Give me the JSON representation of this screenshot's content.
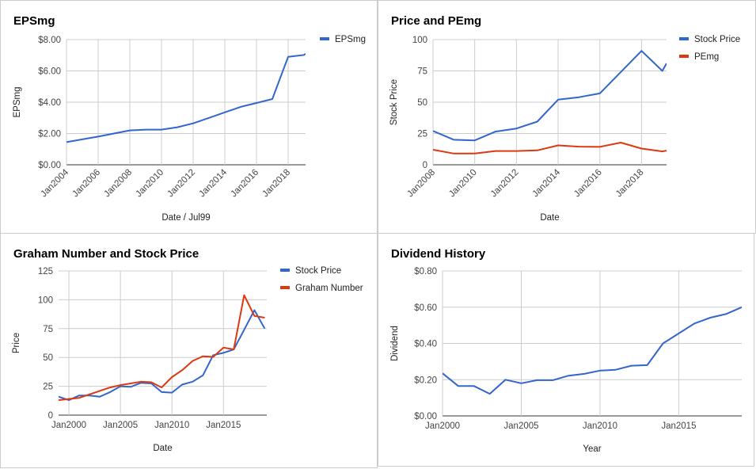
{
  "chart_data": [
    {
      "type": "line",
      "title": "EPSmg",
      "xlabel": "Date / Jul99",
      "ylabel": "EPSmg",
      "x_ticks": [
        "Jan2004",
        "Jan2006",
        "Jan2008",
        "Jan2010",
        "Jan2012",
        "Jan2014",
        "Jan2016",
        "Jan2018"
      ],
      "y_ticks": [
        "$0.00",
        "$2.00",
        "$4.00",
        "$6.00",
        "$8.00"
      ],
      "xlim": [
        2004.0,
        2019.1
      ],
      "ylim": [
        0,
        8
      ],
      "grid": true,
      "legend_position": "right",
      "series": [
        {
          "name": "EPSmg",
          "color": "#3366cc",
          "x": [
            2004.0,
            2006.0,
            2008.0,
            2009.0,
            2010.0,
            2011.0,
            2012.0,
            2013.0,
            2014.0,
            2015.0,
            2016.0,
            2017.0,
            2018.0,
            2019.0,
            2019.1
          ],
          "y": [
            1.45,
            1.8,
            2.2,
            2.25,
            2.25,
            2.4,
            2.65,
            3.0,
            3.35,
            3.7,
            3.95,
            4.2,
            6.9,
            7.02,
            7.1
          ]
        }
      ]
    },
    {
      "type": "line",
      "title": "Price and PEmg",
      "xlabel": "Date",
      "ylabel": "Stock Price",
      "x_ticks": [
        "Jan2008",
        "Jan2010",
        "Jan2012",
        "Jan2014",
        "Jan2016",
        "Jan2018"
      ],
      "y_ticks": [
        "0",
        "25",
        "50",
        "75",
        "100"
      ],
      "xlim": [
        2008.0,
        2019.2
      ],
      "ylim": [
        0,
        100
      ],
      "grid": true,
      "legend_position": "right",
      "series": [
        {
          "name": "Stock Price",
          "color": "#3366cc",
          "x": [
            2008.0,
            2009.0,
            2010.0,
            2011.0,
            2012.0,
            2013.0,
            2014.0,
            2015.0,
            2016.0,
            2017.0,
            2018.0,
            2019.0,
            2019.2
          ],
          "y": [
            27,
            20,
            19.5,
            26.5,
            29,
            34.5,
            52,
            54,
            57,
            74,
            91,
            75,
            81
          ]
        },
        {
          "name": "PEmg",
          "color": "#dc3912",
          "x": [
            2008.0,
            2009.0,
            2010.0,
            2011.0,
            2012.0,
            2013.0,
            2014.0,
            2015.0,
            2016.0,
            2017.0,
            2018.0,
            2019.0,
            2019.2
          ],
          "y": [
            12,
            9,
            9,
            11,
            11,
            11.5,
            15.5,
            14.5,
            14.3,
            17.7,
            13,
            10.7,
            11.3
          ]
        }
      ]
    },
    {
      "type": "line",
      "title": "Graham Number and Stock Price",
      "xlabel": "Date",
      "ylabel": "Price",
      "x_ticks": [
        "Jan2000",
        "Jan2005",
        "Jan2010",
        "Jan2015"
      ],
      "y_ticks": [
        "0",
        "25",
        "50",
        "75",
        "100",
        "125"
      ],
      "xlim": [
        1999.0,
        2019.2
      ],
      "ylim": [
        0,
        125
      ],
      "grid": true,
      "legend_position": "right",
      "series": [
        {
          "name": "Stock Price",
          "color": "#3366cc",
          "x": [
            1999.0,
            2000.0,
            2001.0,
            2002.0,
            2003.0,
            2004.0,
            2005.0,
            2006.0,
            2007.0,
            2008.0,
            2009.0,
            2010.0,
            2011.0,
            2012.0,
            2013.0,
            2014.0,
            2015.0,
            2016.0,
            2017.0,
            2018.0,
            2019.0
          ],
          "y": [
            16,
            13,
            17,
            17,
            16,
            20,
            25,
            24.5,
            28,
            27.5,
            20,
            19.5,
            26.5,
            29,
            34.5,
            52,
            54,
            57,
            74,
            91,
            75
          ]
        },
        {
          "name": "Graham Number",
          "color": "#dc3912",
          "x": [
            1999.0,
            2000.0,
            2001.0,
            2002.0,
            2003.0,
            2004.0,
            2005.0,
            2006.0,
            2007.0,
            2008.0,
            2009.0,
            2010.0,
            2011.0,
            2012.0,
            2013.0,
            2014.0,
            2015.0,
            2016.0,
            2017.0,
            2018.0,
            2019.0
          ],
          "y": [
            13,
            14,
            15,
            18,
            21,
            24,
            26,
            27.5,
            29,
            28.5,
            24,
            33,
            39,
            47,
            51,
            50.5,
            58.5,
            57,
            104,
            86,
            84.5
          ]
        }
      ]
    },
    {
      "type": "line",
      "title": "Dividend History",
      "xlabel": "Year",
      "ylabel": "Dividend",
      "x_ticks": [
        "Jan2000",
        "Jan2005",
        "Jan2010",
        "Jan2015"
      ],
      "y_ticks": [
        "$0.00",
        "$0.20",
        "$0.40",
        "$0.60",
        "$0.80"
      ],
      "xlim": [
        2000.0,
        2019.0
      ],
      "ylim": [
        0,
        0.8
      ],
      "grid": true,
      "legend_position": "none",
      "series": [
        {
          "name": "",
          "color": "#3366cc",
          "x": [
            2000.0,
            2001.0,
            2002.0,
            2003.0,
            2004.0,
            2005.0,
            2006.0,
            2007.0,
            2008.0,
            2009.0,
            2010.0,
            2011.0,
            2012.0,
            2013.0,
            2014.0,
            2015.0,
            2016.0,
            2017.0,
            2018.0,
            2019.0
          ],
          "y": [
            0.235,
            0.165,
            0.165,
            0.122,
            0.2,
            0.18,
            0.197,
            0.197,
            0.222,
            0.232,
            0.25,
            0.255,
            0.277,
            0.28,
            0.4,
            0.455,
            0.51,
            0.542,
            0.562,
            0.6
          ]
        }
      ]
    }
  ]
}
